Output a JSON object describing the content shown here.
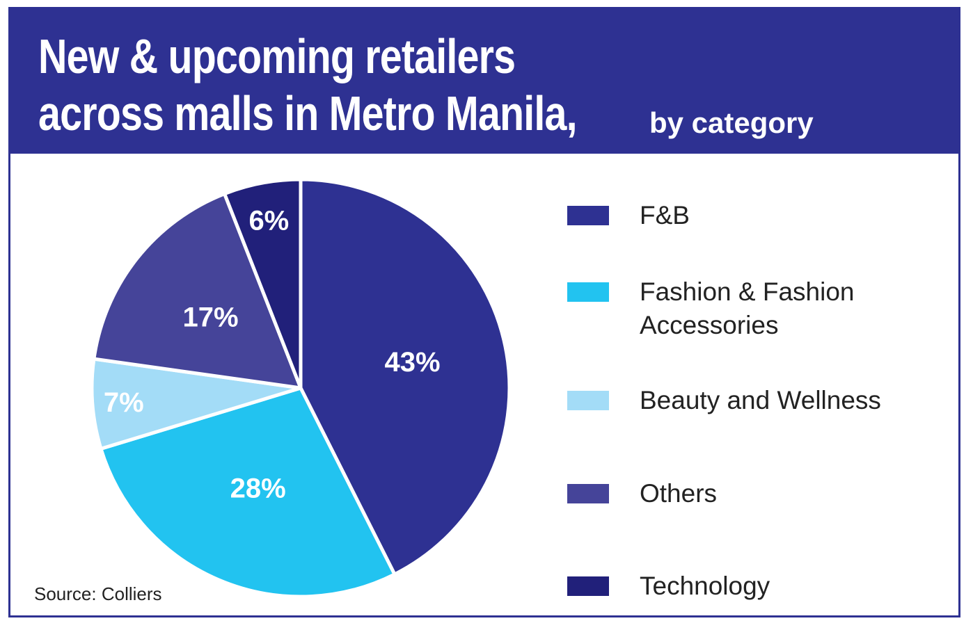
{
  "title": {
    "line1": "New & upcoming retailers",
    "line2": "across malls in Metro Manila,",
    "subtitle": "by category"
  },
  "source": "Source: Colliers",
  "chart_data": {
    "type": "pie",
    "slices": [
      {
        "label": "F&B",
        "value": 43,
        "display": "43%",
        "color": "#2e3192"
      },
      {
        "label": "Fashion & Fashion Accessories",
        "value": 28,
        "display": "28%",
        "color": "#22c3f0"
      },
      {
        "label": "Beauty and Wellness",
        "value": 7,
        "display": "7%",
        "color": "#a3dcf7"
      },
      {
        "label": "Others",
        "value": 17,
        "display": "17%",
        "color": "#454499"
      },
      {
        "label": "Technology",
        "value": 6,
        "display": "6%",
        "color": "#21207a"
      }
    ],
    "legend_placement": "right"
  },
  "legend": [
    {
      "line1": "F&B",
      "line2": ""
    },
    {
      "line1": "Fashion & Fashion",
      "line2": "Accessories"
    },
    {
      "line1": "Beauty and Wellness",
      "line2": ""
    },
    {
      "line1": "Others",
      "line2": ""
    },
    {
      "line1": "Technology",
      "line2": ""
    }
  ]
}
